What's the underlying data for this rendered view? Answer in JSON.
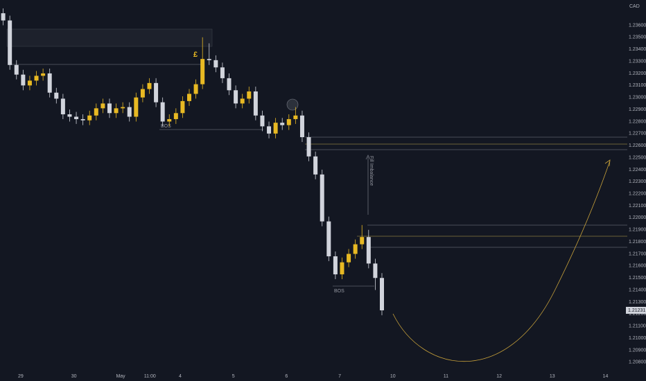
{
  "chart_data": {
    "type": "candlestick",
    "currency": "CAD",
    "up_color": "#e8b923",
    "down_color": "#d1d4dc",
    "annotations": [
      "BOS",
      "BOS",
      "Fill Imbalance",
      "£"
    ],
    "xlim": [
      -0.39,
      11.32
    ],
    "ylim": [
      1.2073,
      1.2381
    ],
    "xticks": [
      {
        "value": 0,
        "label": "29"
      },
      {
        "value": 1,
        "label": "30"
      },
      {
        "value": 1.88,
        "label": "May"
      },
      {
        "value": 2.43,
        "label": "11:00"
      },
      {
        "value": 3,
        "label": "4"
      },
      {
        "value": 4,
        "label": "5"
      },
      {
        "value": 5,
        "label": "6"
      },
      {
        "value": 6,
        "label": "7"
      },
      {
        "value": 7,
        "label": "10"
      },
      {
        "value": 8,
        "label": "11"
      },
      {
        "value": 9,
        "label": "12"
      },
      {
        "value": 10,
        "label": "13"
      },
      {
        "value": 11,
        "label": "14"
      }
    ],
    "yticks": [
      {
        "value": 1.208,
        "label": "1.20800"
      },
      {
        "value": 1.209,
        "label": "1.20900"
      },
      {
        "value": 1.21,
        "label": "1.21000"
      },
      {
        "value": 1.211,
        "label": "1.21100"
      },
      {
        "value": 1.212,
        "label": "1.21200"
      },
      {
        "value": 1.213,
        "label": "1.21300"
      },
      {
        "value": 1.214,
        "label": "1.21400"
      },
      {
        "value": 1.215,
        "label": "1.21500"
      },
      {
        "value": 1.216,
        "label": "1.21600"
      },
      {
        "value": 1.217,
        "label": "1.21700"
      },
      {
        "value": 1.218,
        "label": "1.21800"
      },
      {
        "value": 1.219,
        "label": "1.21900"
      },
      {
        "value": 1.22,
        "label": "1.22000"
      },
      {
        "value": 1.221,
        "label": "1.22100"
      },
      {
        "value": 1.222,
        "label": "1.22200"
      },
      {
        "value": 1.223,
        "label": "1.22300"
      },
      {
        "value": 1.224,
        "label": "1.22400"
      },
      {
        "value": 1.225,
        "label": "1.22500"
      },
      {
        "value": 1.226,
        "label": "1.22600"
      },
      {
        "value": 1.227,
        "label": "1.22700"
      },
      {
        "value": 1.228,
        "label": "1.22800"
      },
      {
        "value": 1.229,
        "label": "1.22900"
      },
      {
        "value": 1.23,
        "label": "1.23000"
      },
      {
        "value": 1.231,
        "label": "1.23100"
      },
      {
        "value": 1.232,
        "label": "1.23200"
      },
      {
        "value": 1.233,
        "label": "1.23300"
      },
      {
        "value": 1.234,
        "label": "1.23400"
      },
      {
        "value": 1.235,
        "label": "1.23500"
      },
      {
        "value": 1.236,
        "label": "1.23600"
      }
    ],
    "x": [
      -0.33,
      -0.205,
      -0.08,
      0.045,
      0.17,
      0.295,
      0.42,
      0.545,
      0.67,
      0.795,
      0.92,
      1.045,
      1.17,
      1.295,
      1.42,
      1.545,
      1.67,
      1.795,
      1.92,
      2.045,
      2.17,
      2.295,
      2.42,
      2.545,
      2.67,
      2.795,
      2.92,
      3.045,
      3.17,
      3.295,
      3.42,
      3.545,
      3.67,
      3.795,
      3.92,
      4.045,
      4.17,
      4.295,
      4.42,
      4.545,
      4.67,
      4.795,
      4.92,
      5.045,
      5.17,
      5.295,
      5.42,
      5.545,
      5.67,
      5.795,
      5.92,
      6.045,
      6.17,
      6.295,
      6.42,
      6.545,
      6.67,
      6.795
    ],
    "open": [
      1.237,
      1.2364,
      1.2327,
      1.2319,
      1.231,
      1.2314,
      1.2318,
      1.232,
      1.2304,
      1.2299,
      1.2286,
      1.2284,
      1.2282,
      1.2281,
      1.2285,
      1.2291,
      1.2295,
      1.2287,
      1.2291,
      1.2292,
      1.2284,
      1.23,
      1.2307,
      1.2312,
      1.2296,
      1.228,
      1.2282,
      1.2287,
      1.2297,
      1.2303,
      1.2311,
      1.2332,
      1.2331,
      1.2325,
      1.2316,
      1.2306,
      1.2295,
      1.2299,
      1.2305,
      1.2285,
      1.2276,
      1.227,
      1.2279,
      1.2277,
      1.2282,
      1.2285,
      1.2267,
      1.2251,
      1.2236,
      1.2197,
      1.2168,
      1.2153,
      1.2163,
      1.217,
      1.2178,
      1.2184,
      1.2162,
      1.215
    ],
    "high": [
      1.2374,
      1.2368,
      1.2331,
      1.2323,
      1.2318,
      1.2322,
      1.2324,
      1.2324,
      1.2308,
      1.2303,
      1.229,
      1.2288,
      1.2286,
      1.2289,
      1.2295,
      1.2299,
      1.2299,
      1.2295,
      1.2296,
      1.2296,
      1.2304,
      1.2311,
      1.2316,
      1.2316,
      1.23,
      1.2286,
      1.2291,
      1.2301,
      1.2307,
      1.2315,
      1.235,
      1.2345,
      1.2335,
      1.2329,
      1.232,
      1.231,
      1.2303,
      1.2309,
      1.2309,
      1.2289,
      1.228,
      1.2283,
      1.2283,
      1.2286,
      1.2292,
      1.2289,
      1.2271,
      1.2255,
      1.224,
      1.2201,
      1.2172,
      1.2167,
      1.2174,
      1.2182,
      1.2194,
      1.219,
      1.2166,
      1.2154
    ],
    "low": [
      1.236,
      1.2323,
      1.2315,
      1.2306,
      1.2306,
      1.231,
      1.2314,
      1.23,
      1.2295,
      1.2282,
      1.228,
      1.2278,
      1.2277,
      1.2277,
      1.2281,
      1.2287,
      1.2283,
      1.2283,
      1.2287,
      1.228,
      1.228,
      1.2296,
      1.2303,
      1.2292,
      1.2276,
      1.2276,
      1.2278,
      1.2283,
      1.2293,
      1.2299,
      1.2307,
      1.2327,
      1.2321,
      1.2312,
      1.2302,
      1.2291,
      1.2291,
      1.2295,
      1.2281,
      1.2272,
      1.2266,
      1.2266,
      1.2273,
      1.2273,
      1.2278,
      1.2263,
      1.2247,
      1.2232,
      1.2193,
      1.2164,
      1.2149,
      1.2149,
      1.2159,
      1.2166,
      1.2174,
      1.2158,
      1.214,
      1.2119
    ],
    "close": [
      1.2364,
      1.2327,
      1.2319,
      1.231,
      1.2314,
      1.2318,
      1.232,
      1.2304,
      1.2299,
      1.2286,
      1.2284,
      1.2282,
      1.2281,
      1.2285,
      1.2291,
      1.2295,
      1.2287,
      1.2291,
      1.2292,
      1.2284,
      1.23,
      1.2307,
      1.2312,
      1.2296,
      1.228,
      1.2282,
      1.2287,
      1.2297,
      1.2303,
      1.2311,
      1.2332,
      1.2331,
      1.2325,
      1.2316,
      1.2306,
      1.2295,
      1.2299,
      1.2305,
      1.2285,
      1.2276,
      1.227,
      1.2279,
      1.2277,
      1.2282,
      1.2285,
      1.2267,
      1.2251,
      1.2236,
      1.2197,
      1.2168,
      1.2153,
      1.2163,
      1.217,
      1.2178,
      1.2184,
      1.2162,
      1.215,
      1.21231
    ]
  }
}
